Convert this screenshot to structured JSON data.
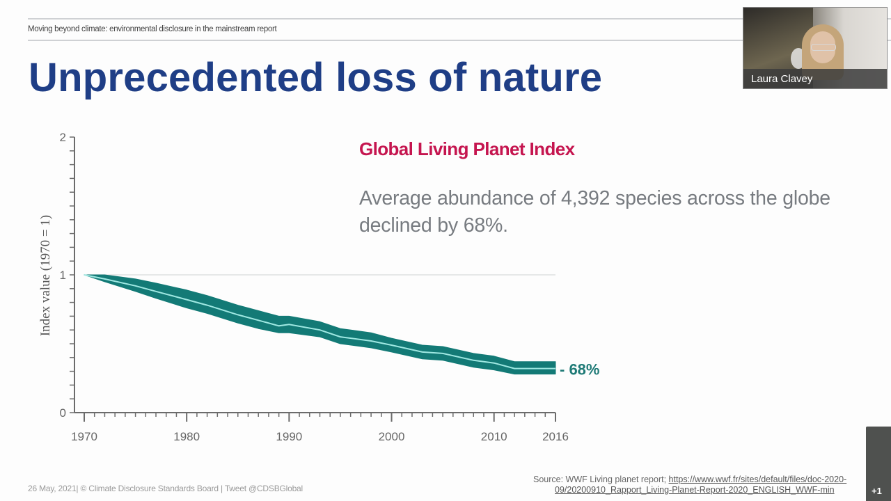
{
  "header": {
    "subtitle": "Moving beyond climate: environmental disclosure in the mainstream report",
    "title": "Unprecedented loss of nature"
  },
  "chart_text": {
    "title": "Global Living Planet Index",
    "description": "Average abundance of 4,392 species across the globe declined by 68%."
  },
  "chart_data": {
    "type": "line",
    "title": "Global Living Planet Index",
    "xlabel": "",
    "ylabel": "Index value (1970 = 1)",
    "xlim": [
      1970,
      2016
    ],
    "ylim": [
      0,
      2
    ],
    "x_ticks": [
      1970,
      1980,
      1990,
      2000,
      2010,
      2016
    ],
    "y_ticks": [
      0,
      1,
      2
    ],
    "y_minor_step": 0.1,
    "x_minor_step": 1,
    "reference_line": 1,
    "series": [
      {
        "name": "Global Living Planet Index",
        "x": [
          1970,
          1972,
          1975,
          1977,
          1980,
          1982,
          1985,
          1987,
          1989,
          1990,
          1993,
          1995,
          1998,
          2000,
          2003,
          2005,
          2008,
          2010,
          2012,
          2014,
          2016
        ],
        "values": [
          1.0,
          0.97,
          0.92,
          0.88,
          0.82,
          0.78,
          0.71,
          0.67,
          0.63,
          0.64,
          0.6,
          0.55,
          0.52,
          0.49,
          0.44,
          0.43,
          0.38,
          0.36,
          0.32,
          0.32,
          0.32
        ],
        "upper": [
          1.0,
          1.0,
          0.97,
          0.94,
          0.89,
          0.85,
          0.78,
          0.74,
          0.7,
          0.7,
          0.66,
          0.61,
          0.58,
          0.54,
          0.49,
          0.48,
          0.43,
          0.41,
          0.37,
          0.37,
          0.37
        ],
        "lower": [
          1.0,
          0.95,
          0.88,
          0.83,
          0.76,
          0.72,
          0.65,
          0.61,
          0.58,
          0.58,
          0.55,
          0.5,
          0.47,
          0.44,
          0.39,
          0.38,
          0.33,
          0.31,
          0.28,
          0.28,
          0.28
        ]
      }
    ],
    "annotation": "- 68%",
    "colors": {
      "band": "#137a76",
      "line": "#9fe8e2",
      "axis": "#6b6b6b",
      "reference": "#d9dcdc"
    }
  },
  "footer": {
    "left": "26 May, 2021| © Climate Disclosure Standards Board | Tweet @CDSBGlobal",
    "source_prefix": "Source: WWF Living planet report; ",
    "source_url_line1": "https://www.wwf.fr/sites/default/files/doc-2020-",
    "source_url_line2": "09/20200910_Rapport_Living-Planet-Report-2020_ENGLISH_WWF-min"
  },
  "video": {
    "participant_name": "Laura Clavey",
    "overflow_count": "+1"
  }
}
